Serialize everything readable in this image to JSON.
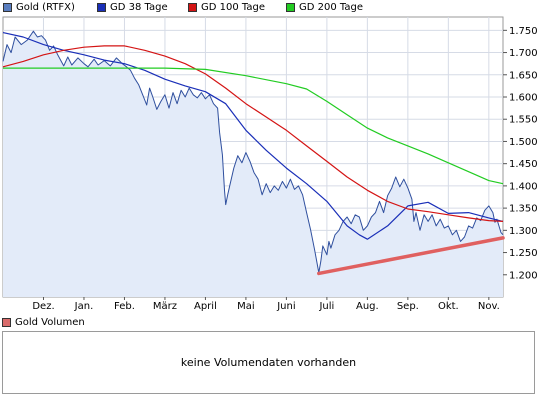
{
  "legend": [
    {
      "label": "Gold (RTFX)",
      "color": "#5a7ec0"
    },
    {
      "label": "GD 38 Tage",
      "color": "#1a2fb8"
    },
    {
      "label": "GD 100 Tage",
      "color": "#d41414"
    },
    {
      "label": "GD 200 Tage",
      "color": "#22cc22"
    }
  ],
  "volume": {
    "label": "Gold Volumen",
    "color": "#d96b6b",
    "message": "keine Volumendaten vorhanden"
  },
  "chart_data": {
    "type": "line",
    "x_ticks": [
      "Dez.",
      "Jan.",
      "Feb.",
      "März",
      "April",
      "Mai",
      "Juni",
      "Juli",
      "Aug.",
      "Sep.",
      "Okt.",
      "Nov."
    ],
    "y_ticks": [
      "1.750",
      "1.700",
      "1.650",
      "1.600",
      "1.550",
      "1.500",
      "1.450",
      "1.400",
      "1.350",
      "1.300",
      "1.250",
      "1.200"
    ],
    "ylim": [
      1150,
      1780
    ],
    "xlim": [
      0,
      12.35
    ],
    "grid": true,
    "legend_position": "top-left",
    "series": [
      {
        "name": "Gold (RTFX)",
        "type": "area",
        "color": "#2f4f9e",
        "fill": "#e3ebf9",
        "points": [
          [
            0,
            1680
          ],
          [
            0.1,
            1718
          ],
          [
            0.2,
            1700
          ],
          [
            0.3,
            1735
          ],
          [
            0.45,
            1718
          ],
          [
            0.6,
            1728
          ],
          [
            0.75,
            1748
          ],
          [
            0.85,
            1735
          ],
          [
            0.95,
            1738
          ],
          [
            1.05,
            1728
          ],
          [
            1.15,
            1705
          ],
          [
            1.25,
            1715
          ],
          [
            1.35,
            1695
          ],
          [
            1.5,
            1670
          ],
          [
            1.6,
            1690
          ],
          [
            1.7,
            1672
          ],
          [
            1.85,
            1688
          ],
          [
            2.0,
            1675
          ],
          [
            2.1,
            1668
          ],
          [
            2.25,
            1685
          ],
          [
            2.35,
            1672
          ],
          [
            2.5,
            1682
          ],
          [
            2.65,
            1670
          ],
          [
            2.8,
            1688
          ],
          [
            2.95,
            1675
          ],
          [
            3.05,
            1668
          ],
          [
            3.15,
            1660
          ],
          [
            3.25,
            1642
          ],
          [
            3.35,
            1628
          ],
          [
            3.45,
            1605
          ],
          [
            3.55,
            1582
          ],
          [
            3.62,
            1620
          ],
          [
            3.7,
            1600
          ],
          [
            3.8,
            1572
          ],
          [
            3.9,
            1590
          ],
          [
            4.0,
            1605
          ],
          [
            4.1,
            1575
          ],
          [
            4.2,
            1610
          ],
          [
            4.3,
            1585
          ],
          [
            4.4,
            1615
          ],
          [
            4.5,
            1600
          ],
          [
            4.6,
            1620
          ],
          [
            4.7,
            1605
          ],
          [
            4.8,
            1598
          ],
          [
            4.9,
            1610
          ],
          [
            5.0,
            1596
          ],
          [
            5.1,
            1605
          ],
          [
            5.2,
            1585
          ],
          [
            5.3,
            1575
          ],
          [
            5.35,
            1520
          ],
          [
            5.42,
            1470
          ],
          [
            5.47,
            1390
          ],
          [
            5.5,
            1358
          ],
          [
            5.55,
            1380
          ],
          [
            5.6,
            1400
          ],
          [
            5.7,
            1440
          ],
          [
            5.8,
            1468
          ],
          [
            5.9,
            1452
          ],
          [
            6.0,
            1475
          ],
          [
            6.1,
            1455
          ],
          [
            6.2,
            1430
          ],
          [
            6.3,
            1415
          ],
          [
            6.4,
            1380
          ],
          [
            6.5,
            1405
          ],
          [
            6.6,
            1385
          ],
          [
            6.7,
            1400
          ],
          [
            6.8,
            1390
          ],
          [
            6.9,
            1410
          ],
          [
            7.0,
            1395
          ],
          [
            7.1,
            1415
          ],
          [
            7.2,
            1392
          ],
          [
            7.3,
            1400
          ],
          [
            7.4,
            1380
          ],
          [
            7.5,
            1340
          ],
          [
            7.6,
            1300
          ],
          [
            7.7,
            1255
          ],
          [
            7.8,
            1205
          ],
          [
            7.85,
            1230
          ],
          [
            7.9,
            1265
          ],
          [
            8.0,
            1245
          ],
          [
            8.05,
            1275
          ],
          [
            8.1,
            1260
          ],
          [
            8.2,
            1290
          ],
          [
            8.3,
            1300
          ],
          [
            8.4,
            1320
          ],
          [
            8.5,
            1330
          ],
          [
            8.6,
            1315
          ],
          [
            8.7,
            1335
          ],
          [
            8.8,
            1330
          ],
          [
            8.9,
            1300
          ],
          [
            9.0,
            1310
          ],
          [
            9.1,
            1330
          ],
          [
            9.2,
            1340
          ],
          [
            9.3,
            1365
          ],
          [
            9.4,
            1340
          ],
          [
            9.5,
            1378
          ],
          [
            9.6,
            1395
          ],
          [
            9.7,
            1420
          ],
          [
            9.8,
            1398
          ],
          [
            9.9,
            1415
          ],
          [
            10.0,
            1395
          ],
          [
            10.1,
            1370
          ],
          [
            10.15,
            1320
          ],
          [
            10.2,
            1340
          ],
          [
            10.3,
            1300
          ],
          [
            10.4,
            1335
          ],
          [
            10.5,
            1320
          ],
          [
            10.6,
            1335
          ],
          [
            10.7,
            1310
          ],
          [
            10.8,
            1325
          ],
          [
            10.9,
            1305
          ],
          [
            11.0,
            1310
          ],
          [
            11.1,
            1290
          ],
          [
            11.2,
            1300
          ],
          [
            11.3,
            1275
          ],
          [
            11.4,
            1285
          ],
          [
            11.5,
            1310
          ],
          [
            11.6,
            1305
          ],
          [
            11.7,
            1328
          ],
          [
            11.8,
            1322
          ],
          [
            11.9,
            1345
          ],
          [
            12.0,
            1355
          ],
          [
            12.1,
            1340
          ],
          [
            12.15,
            1318
          ],
          [
            12.2,
            1325
          ],
          [
            12.3,
            1295
          ],
          [
            12.35,
            1290
          ]
        ]
      },
      {
        "name": "GD 38 Tage",
        "color": "#1a2fb8",
        "points": [
          [
            0,
            1745
          ],
          [
            0.5,
            1735
          ],
          [
            1.0,
            1718
          ],
          [
            1.5,
            1705
          ],
          [
            2.0,
            1695
          ],
          [
            2.5,
            1683
          ],
          [
            3.0,
            1675
          ],
          [
            3.5,
            1660
          ],
          [
            4.0,
            1640
          ],
          [
            4.5,
            1625
          ],
          [
            5.0,
            1612
          ],
          [
            5.5,
            1585
          ],
          [
            6.0,
            1525
          ],
          [
            6.5,
            1480
          ],
          [
            7.0,
            1440
          ],
          [
            7.5,
            1405
          ],
          [
            8.0,
            1365
          ],
          [
            8.5,
            1310
          ],
          [
            8.8,
            1290
          ],
          [
            9.0,
            1280
          ],
          [
            9.5,
            1310
          ],
          [
            10.0,
            1355
          ],
          [
            10.5,
            1363
          ],
          [
            11.0,
            1338
          ],
          [
            11.5,
            1340
          ],
          [
            12.0,
            1328
          ],
          [
            12.35,
            1320
          ]
        ]
      },
      {
        "name": "GD 100 Tage",
        "color": "#d41414",
        "points": [
          [
            0,
            1668
          ],
          [
            0.5,
            1680
          ],
          [
            1.0,
            1695
          ],
          [
            1.5,
            1705
          ],
          [
            2.0,
            1712
          ],
          [
            2.5,
            1715
          ],
          [
            3.0,
            1715
          ],
          [
            3.5,
            1705
          ],
          [
            4.0,
            1692
          ],
          [
            4.5,
            1675
          ],
          [
            5.0,
            1652
          ],
          [
            5.5,
            1620
          ],
          [
            6.0,
            1585
          ],
          [
            6.5,
            1555
          ],
          [
            7.0,
            1525
          ],
          [
            7.5,
            1490
          ],
          [
            8.0,
            1455
          ],
          [
            8.5,
            1420
          ],
          [
            9.0,
            1390
          ],
          [
            9.5,
            1365
          ],
          [
            10.0,
            1348
          ],
          [
            10.5,
            1342
          ],
          [
            11.0,
            1335
          ],
          [
            11.5,
            1328
          ],
          [
            12.0,
            1322
          ],
          [
            12.35,
            1320
          ]
        ]
      },
      {
        "name": "GD 200 Tage",
        "color": "#22cc22",
        "points": [
          [
            0,
            1665
          ],
          [
            1.0,
            1665
          ],
          [
            2.0,
            1665
          ],
          [
            3.0,
            1665
          ],
          [
            4.0,
            1665
          ],
          [
            5.0,
            1662
          ],
          [
            6.0,
            1648
          ],
          [
            7.0,
            1630
          ],
          [
            7.5,
            1618
          ],
          [
            8.0,
            1590
          ],
          [
            8.5,
            1560
          ],
          [
            9.0,
            1530
          ],
          [
            9.5,
            1508
          ],
          [
            10.0,
            1490
          ],
          [
            10.5,
            1472
          ],
          [
            11.0,
            1452
          ],
          [
            11.5,
            1432
          ],
          [
            12.0,
            1412
          ],
          [
            12.35,
            1405
          ]
        ]
      }
    ],
    "trendline": {
      "points": [
        [
          7.8,
          1203
        ],
        [
          12.35,
          1283
        ]
      ],
      "color": "#e06060"
    }
  }
}
